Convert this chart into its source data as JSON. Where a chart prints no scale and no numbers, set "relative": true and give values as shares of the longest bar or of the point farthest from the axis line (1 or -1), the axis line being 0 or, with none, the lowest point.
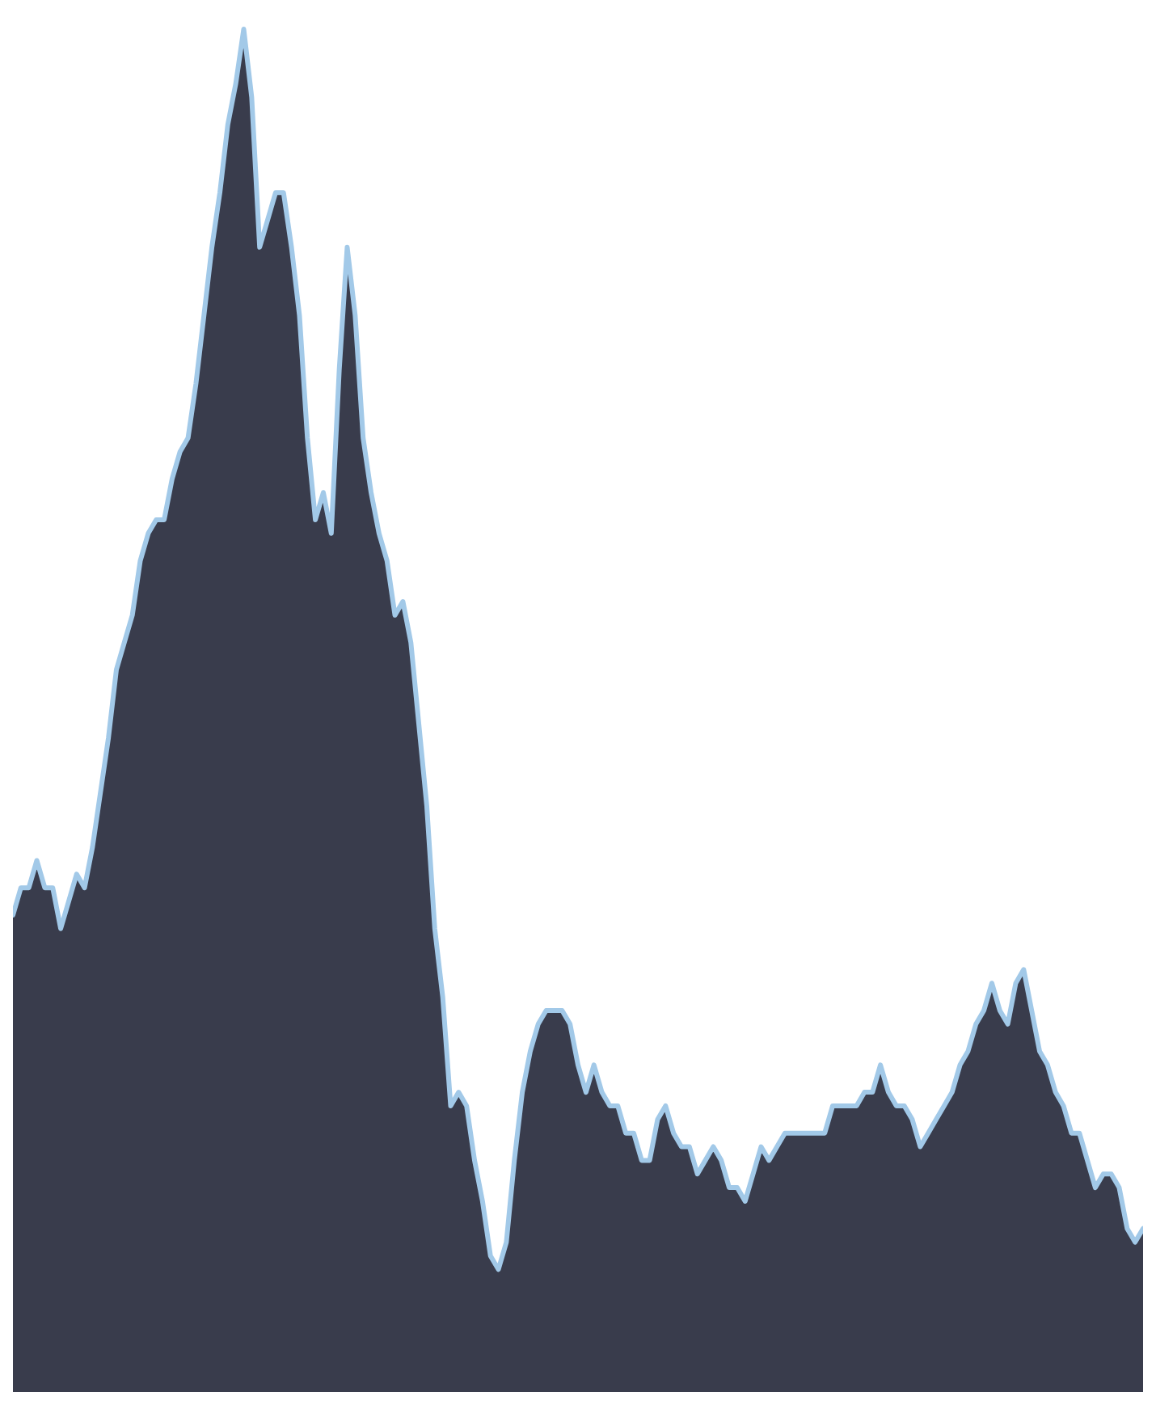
{
  "chart_data": {
    "type": "area",
    "relative": true,
    "categories": [
      null,
      null,
      null,
      null,
      null,
      null,
      null,
      null,
      null,
      null,
      null,
      null,
      null,
      null,
      null,
      null,
      null,
      null,
      null,
      null,
      null,
      null,
      null,
      null,
      null,
      null,
      null,
      null,
      null,
      null,
      null,
      null,
      null,
      null,
      null,
      null,
      null,
      null,
      null,
      null,
      null,
      null,
      null,
      null,
      null,
      null,
      null,
      null,
      null,
      null,
      null,
      null,
      null,
      null,
      null,
      null,
      null,
      null,
      null,
      null,
      null,
      null,
      null,
      null,
      null,
      null,
      null,
      null,
      null,
      null,
      null,
      null,
      null,
      null,
      null,
      null,
      null,
      null,
      null,
      null,
      null,
      null,
      null,
      null,
      null,
      null,
      null,
      null,
      null,
      null,
      null,
      null,
      null,
      null,
      null,
      null,
      null,
      null,
      null,
      null,
      null,
      null,
      null,
      null,
      null,
      null,
      null,
      null,
      null,
      null,
      null,
      null,
      null,
      null,
      null,
      null,
      null,
      null,
      null,
      null,
      null,
      null,
      null,
      null,
      null,
      null,
      null,
      null,
      null,
      null,
      null,
      null,
      null,
      null,
      null,
      null,
      null,
      null,
      null,
      null,
      null,
      null,
      null
    ],
    "series": [
      {
        "color": "#393c4c",
        "values": [
          0.35,
          0.37,
          0.37,
          0.39,
          0.37,
          0.37,
          0.34,
          0.36,
          0.38,
          0.37,
          0.4,
          0.44,
          0.48,
          0.53,
          0.55,
          0.57,
          0.61,
          0.63,
          0.64,
          0.64,
          0.67,
          0.69,
          0.7,
          0.74,
          0.79,
          0.84,
          0.88,
          0.93,
          0.96,
          1,
          0.95,
          0.84,
          0.86,
          0.88,
          0.88,
          0.84,
          0.79,
          0.7,
          0.64,
          0.66,
          0.63,
          0.75,
          0.84,
          0.79,
          0.7,
          0.66,
          0.63,
          0.61,
          0.57,
          0.58,
          0.55,
          0.49,
          0.43,
          0.34,
          0.29,
          0.21,
          0.22,
          0.21,
          0.17,
          0.14,
          0.1,
          0.09,
          0.11,
          0.17,
          0.22,
          0.25,
          0.27,
          0.28,
          0.28,
          0.28,
          0.27,
          0.24,
          0.22,
          0.24,
          0.22,
          0.21,
          0.21,
          0.19,
          0.19,
          0.17,
          0.17,
          0.2,
          0.21,
          0.19,
          0.18,
          0.18,
          0.16,
          0.17,
          0.18,
          0.17,
          0.15,
          0.15,
          0.14,
          0.16,
          0.18,
          0.17,
          0.18,
          0.19,
          0.19,
          0.19,
          0.19,
          0.19,
          0.19,
          0.21,
          0.21,
          0.21,
          0.21,
          0.22,
          0.22,
          0.24,
          0.22,
          0.21,
          0.21,
          0.2,
          0.18,
          0.19,
          0.2,
          0.21,
          0.22,
          0.24,
          0.25,
          0.27,
          0.28,
          0.3,
          0.28,
          0.27,
          0.3,
          0.31,
          0.28,
          0.25,
          0.24,
          0.22,
          0.21,
          0.19,
          0.19,
          0.17,
          0.15,
          0.16,
          0.16,
          0.15,
          0.12,
          0.11,
          0.12
        ]
      }
    ]
  }
}
